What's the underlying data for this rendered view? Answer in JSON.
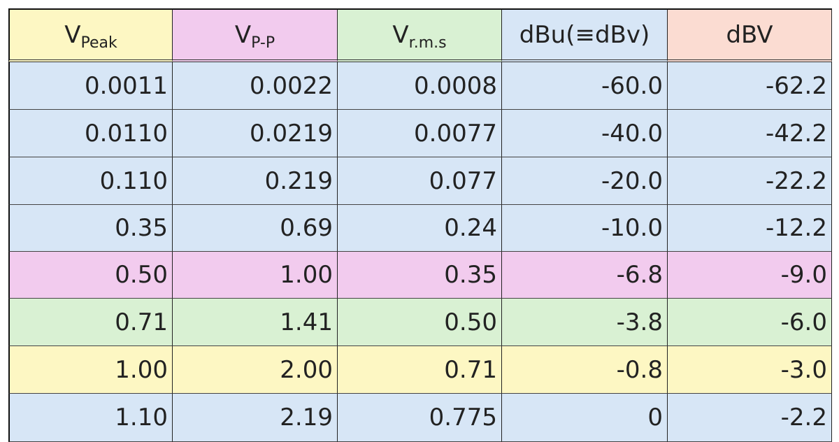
{
  "table": {
    "header": [
      {
        "main": "V",
        "sub": "Peak",
        "color": "#fdf7c3"
      },
      {
        "main": "V",
        "sub": "P-P",
        "color": "#f2cbee"
      },
      {
        "main": "V",
        "sub": "r.m.s",
        "color": "#d9f1d3"
      },
      {
        "main": "dBu(≡dBv)",
        "color": "#d7e6f6"
      },
      {
        "main": "dBV",
        "color": "#fbdcd2"
      }
    ],
    "rows": [
      [
        "0.0011",
        "0.0022",
        "0.0008",
        "-60.0",
        "-62.2"
      ],
      [
        "0.0110",
        "0.0219",
        "0.0077",
        "-40.0",
        "-42.2"
      ],
      [
        "0.110",
        "0.219",
        "0.077",
        "-20.0",
        "-22.2"
      ],
      [
        "0.35",
        "0.69",
        "0.24",
        "-10.0",
        "-12.2"
      ],
      [
        "0.50",
        "1.00",
        "0.35",
        "-6.8",
        "-9.0"
      ],
      [
        "0.71",
        "1.41",
        "0.50",
        "-3.8",
        "-6.0"
      ],
      [
        "1.00",
        "2.00",
        "0.71",
        "-0.8",
        "-3.0"
      ],
      [
        "1.10",
        "2.19",
        "0.775",
        "0",
        "-2.2"
      ]
    ],
    "row_colors": [
      "#d7e6f6",
      "#d7e6f6",
      "#d7e6f6",
      "#d7e6f6",
      "#f2cbee",
      "#d9f1d3",
      "#fdf7c3",
      "#d7e6f6"
    ]
  }
}
